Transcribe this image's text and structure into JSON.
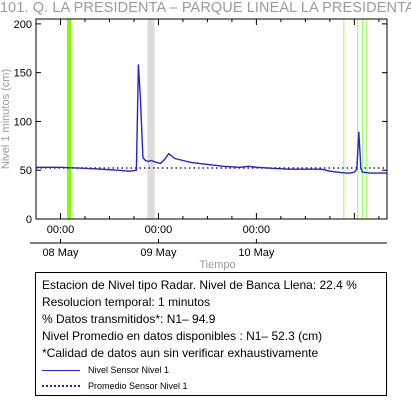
{
  "chart_data": {
    "type": "line",
    "title": "101. Q. LA PRESIDENTA –  PARQUE LINEAL LA PRESIDENTA",
    "ylabel": "Nivel 1 minutos (cm)",
    "xlabel": "Tiempo",
    "ylim": [
      0,
      205
    ],
    "yticks": [
      0,
      50,
      100,
      150,
      200
    ],
    "x_range_hours": [
      -6,
      80
    ],
    "x_tick_labels": [
      {
        "hours": 0,
        "time": "00:00",
        "date": "08 May"
      },
      {
        "hours": 24,
        "time": "00:00",
        "date": "09 May"
      },
      {
        "hours": 48,
        "time": "00:00",
        "date": "10 May"
      }
    ],
    "series": [
      {
        "name": "Nivel Sensor Nivel 1",
        "color": "#2424d4",
        "x": [
          -6,
          0,
          6,
          10,
          14,
          17,
          18.6,
          19.1,
          19.6,
          20.2,
          20.8,
          21.5,
          22.2,
          23.5,
          24.5,
          25.5,
          26.5,
          28,
          30,
          32,
          36,
          40,
          44,
          46,
          48,
          52,
          56,
          60,
          64,
          66,
          68,
          70,
          71,
          72,
          72.6,
          73.1,
          73.6,
          74,
          76,
          80
        ],
        "values": [
          53,
          53,
          52,
          51,
          50,
          49,
          50,
          158,
          122,
          63,
          60,
          59,
          60,
          58,
          57,
          61,
          67,
          62,
          60,
          58,
          56,
          54,
          53,
          54,
          53,
          52,
          51,
          51,
          51,
          49,
          48,
          47,
          47,
          48,
          51,
          89,
          52,
          48,
          47,
          47
        ]
      },
      {
        "name": "Promedio Sensor Nivel 1",
        "color": "#20208a",
        "x": [
          -6,
          80
        ],
        "values": [
          52.3,
          52.3
        ]
      }
    ],
    "bands": [
      {
        "x0": 1.6,
        "x1": 2.6,
        "color": "#7fff00",
        "kind": "green"
      },
      {
        "x0": 21.3,
        "x1": 23.1,
        "color": "#dcdcdc",
        "kind": "gray"
      },
      {
        "x0": 69.3,
        "x1": 69.5,
        "color": "#8cff50",
        "kind": "green-thin"
      },
      {
        "x0": 72.7,
        "x1": 72.9,
        "color": "#8cff50",
        "kind": "green-thin"
      },
      {
        "x0": 73.9,
        "x1": 74.1,
        "color": "#8cff50",
        "kind": "green-thin"
      },
      {
        "x0": 74.8,
        "x1": 75.0,
        "color": "#8cff50",
        "kind": "green-thin"
      }
    ],
    "grid": false,
    "legend_placement": "bottom-box"
  },
  "info": {
    "lines": [
      "Estacion de Nivel tipo Radar. Nivel de Banca Llena: 22.4 %",
      "Resolucion temporal: 1 minutos",
      "% Datos transmitidos*: N1– 94.9",
      "Nivel Promedio en datos disponibles : N1– 52.3 (cm)",
      "*Calidad de datos aun sin verificar exhaustivamente"
    ],
    "legend": [
      {
        "label": "Nivel Sensor Nivel 1",
        "style": "solid"
      },
      {
        "label": "Promedio Sensor Nivel 1",
        "style": "dotted"
      }
    ]
  }
}
